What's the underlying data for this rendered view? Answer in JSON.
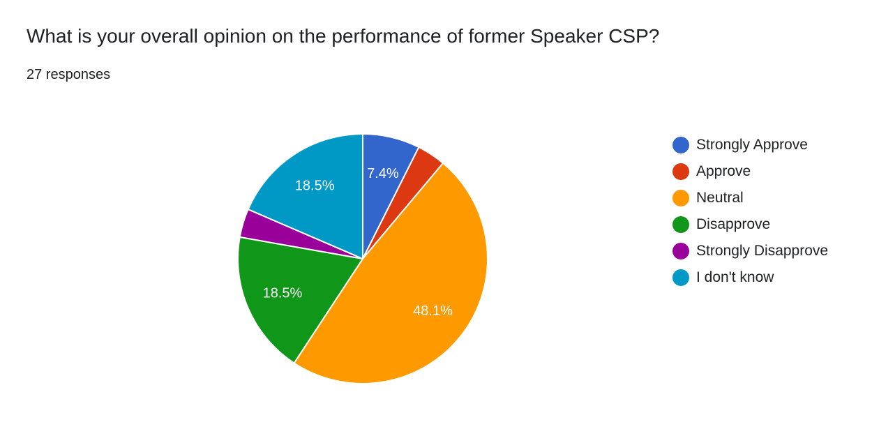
{
  "title": "What is your overall opinion on the performance of former Speaker CSP?",
  "subtitle": "27 responses",
  "chart_data": {
    "type": "pie",
    "total_responses": 27,
    "start_angle_deg": 90,
    "direction": "clockwise",
    "legend_position": "right",
    "slices": [
      {
        "name": "Strongly Approve",
        "count": 2,
        "percent": 7.4,
        "label": "7.4%",
        "color": "#3366cc"
      },
      {
        "name": "Approve",
        "count": 1,
        "percent": 3.7,
        "label": "",
        "color": "#dc3912"
      },
      {
        "name": "Neutral",
        "count": 13,
        "percent": 48.1,
        "label": "48.1%",
        "color": "#ff9900"
      },
      {
        "name": "Disapprove",
        "count": 5,
        "percent": 18.5,
        "label": "18.5%",
        "color": "#109618"
      },
      {
        "name": "Strongly Disapprove",
        "count": 1,
        "percent": 3.7,
        "label": "",
        "color": "#990099"
      },
      {
        "name": "I don't know",
        "count": 5,
        "percent": 18.5,
        "label": "18.5%",
        "color": "#0099c6"
      }
    ]
  }
}
